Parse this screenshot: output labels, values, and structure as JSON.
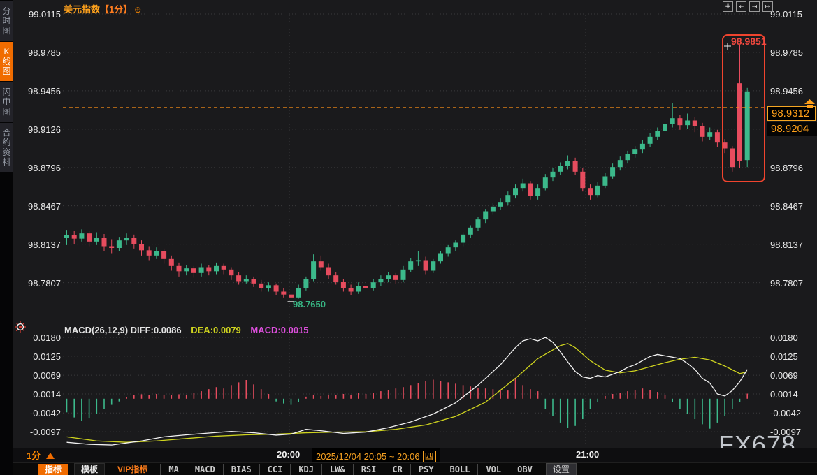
{
  "header": {
    "title": "美元指数",
    "period_tag": "【1分】",
    "expand_icon": "⊕"
  },
  "sidebar": {
    "items": [
      {
        "label": "分时图",
        "active": false
      },
      {
        "label": "K线图",
        "active": true
      },
      {
        "label": "闪电图",
        "active": false
      },
      {
        "label": "合约资料",
        "active": false
      }
    ]
  },
  "top_icons": [
    {
      "name": "pan-icon",
      "glyph": "✚"
    },
    {
      "name": "scale-left-icon",
      "glyph": "⇤"
    },
    {
      "name": "scale-right-icon",
      "glyph": "⇥"
    },
    {
      "name": "shift-right-icon",
      "glyph": "↦"
    }
  ],
  "price_markers": {
    "high": "98.9851",
    "current": "98.9312",
    "secondary": "98.9204",
    "low": "98.7650"
  },
  "macd_header": {
    "name": "MACD(26,12,9) DIFF:0.0086",
    "dea": "DEA:0.0079",
    "macd": "MACD:0.0015"
  },
  "time_axis": {
    "period": "1分",
    "left_time": "20:00",
    "date_range": "2025/12/04 20:05 ~ 20:06",
    "weekday": "四",
    "right_time": "21:00"
  },
  "watermark": "FX678",
  "footer": {
    "buttons": [
      {
        "label": "指标",
        "variant": "active"
      },
      {
        "label": "模板",
        "variant": "tab"
      },
      {
        "label": "VIP指标",
        "variant": "vip"
      },
      {
        "label": "MA",
        "variant": "ind"
      },
      {
        "label": "MACD",
        "variant": "ind"
      },
      {
        "label": "BIAS",
        "variant": "ind"
      },
      {
        "label": "CCI",
        "variant": "ind"
      },
      {
        "label": "KDJ",
        "variant": "ind"
      },
      {
        "label": "LW&",
        "variant": "ind"
      },
      {
        "label": "RSI",
        "variant": "ind"
      },
      {
        "label": "CR",
        "variant": "ind"
      },
      {
        "label": "PSY",
        "variant": "ind"
      },
      {
        "label": "BOLL",
        "variant": "ind"
      },
      {
        "label": "VOL",
        "variant": "ind"
      },
      {
        "label": "OBV",
        "variant": "ind"
      },
      {
        "label": "设置",
        "variant": "settings"
      }
    ]
  },
  "colors": {
    "up": "#3cb98b",
    "down": "#e64c5e",
    "accent_orange": "#ff8a00",
    "label_orange": "#ffa019",
    "dea_yellow": "#cfd41f",
    "diff_white": "#f2f2f2",
    "macd_magenta": "#dd4fdd",
    "highlight_red": "#f0442e",
    "grid": "#3a3a3d",
    "plot_bg": "#1a1a1c"
  },
  "chart_data": {
    "type": "candlestick",
    "symbol": "美元指数",
    "interval": "1分",
    "price_axis_ticks": [
      99.0115,
      98.9785,
      98.9456,
      98.9126,
      98.8796,
      98.8467,
      98.8137,
      98.7807
    ],
    "current_price": 98.9312,
    "secondary_price": 98.9204,
    "session_high": 98.9851,
    "session_low": 98.765,
    "low_marker_index": 30,
    "high_marker_index": 90,
    "time_ticks": [
      "20:00",
      "21:00"
    ],
    "candles": [
      [
        98.819,
        98.826,
        98.813,
        98.8215
      ],
      [
        98.8215,
        98.825,
        98.814,
        98.8185
      ],
      [
        98.8185,
        98.8265,
        98.816,
        98.823
      ],
      [
        98.823,
        98.8255,
        98.812,
        98.816
      ],
      [
        98.816,
        98.824,
        98.813,
        98.8195
      ],
      [
        98.8195,
        98.8225,
        98.808,
        98.812
      ],
      [
        98.812,
        98.818,
        98.806,
        98.8105
      ],
      [
        98.8105,
        98.82,
        98.808,
        98.817
      ],
      [
        98.817,
        98.823,
        98.813,
        98.8195
      ],
      [
        98.8195,
        98.822,
        98.81,
        98.814
      ],
      [
        98.814,
        98.817,
        98.804,
        98.8085
      ],
      [
        98.8085,
        98.812,
        98.8,
        98.804
      ],
      [
        98.804,
        98.811,
        98.801,
        98.8075
      ],
      [
        98.8075,
        98.81,
        98.797,
        98.801
      ],
      [
        98.801,
        98.804,
        98.791,
        98.795
      ],
      [
        98.795,
        98.798,
        98.786,
        98.7905
      ],
      [
        98.7905,
        98.796,
        98.787,
        98.793
      ],
      [
        98.793,
        98.795,
        98.785,
        98.789
      ],
      [
        98.789,
        98.797,
        98.786,
        98.794
      ],
      [
        98.794,
        98.796,
        98.787,
        98.7905
      ],
      [
        98.7905,
        98.798,
        98.788,
        98.795
      ],
      [
        98.795,
        98.797,
        98.788,
        98.792
      ],
      [
        98.792,
        98.794,
        98.783,
        98.787
      ],
      [
        98.787,
        98.79,
        98.779,
        98.782
      ],
      [
        98.782,
        98.787,
        98.78,
        98.784
      ],
      [
        98.784,
        98.786,
        98.777,
        98.78
      ],
      [
        98.78,
        98.783,
        98.773,
        98.776
      ],
      [
        98.776,
        98.781,
        98.773,
        98.7785
      ],
      [
        98.7785,
        98.78,
        98.77,
        98.773
      ],
      [
        98.773,
        98.776,
        98.768,
        98.7705
      ],
      [
        98.7705,
        98.773,
        98.765,
        98.768
      ],
      [
        98.768,
        98.779,
        98.767,
        98.776
      ],
      [
        98.776,
        98.786,
        98.774,
        98.7835
      ],
      [
        98.7835,
        98.805,
        98.782,
        98.799
      ],
      [
        98.799,
        98.804,
        98.791,
        98.794
      ],
      [
        98.794,
        98.797,
        98.784,
        98.787
      ],
      [
        98.787,
        98.79,
        98.779,
        98.7815
      ],
      [
        98.7815,
        98.784,
        98.773,
        98.776
      ],
      [
        98.776,
        98.779,
        98.77,
        98.773
      ],
      [
        98.773,
        98.781,
        98.771,
        98.778
      ],
      [
        98.778,
        98.78,
        98.773,
        98.776
      ],
      [
        98.776,
        98.784,
        98.774,
        98.781
      ],
      [
        98.781,
        98.787,
        98.778,
        98.784
      ],
      [
        98.784,
        98.79,
        98.781,
        98.787
      ],
      [
        98.787,
        98.789,
        98.78,
        98.783
      ],
      [
        98.783,
        98.795,
        98.781,
        98.792
      ],
      [
        98.792,
        98.802,
        98.79,
        98.799
      ],
      [
        98.799,
        98.808,
        98.795,
        98.8
      ],
      [
        98.8,
        98.803,
        98.788,
        98.791
      ],
      [
        98.791,
        98.801,
        98.789,
        98.799
      ],
      [
        98.799,
        98.808,
        98.797,
        98.806
      ],
      [
        98.806,
        98.813,
        98.803,
        98.811
      ],
      [
        98.811,
        98.817,
        98.808,
        98.815
      ],
      [
        98.815,
        98.824,
        98.812,
        98.822
      ],
      [
        98.822,
        98.83,
        98.819,
        98.828
      ],
      [
        98.828,
        98.837,
        98.825,
        98.835
      ],
      [
        98.835,
        98.844,
        98.832,
        98.842
      ],
      [
        98.842,
        98.849,
        98.839,
        98.846
      ],
      [
        98.846,
        98.853,
        98.843,
        98.85
      ],
      [
        98.85,
        98.859,
        98.847,
        98.856
      ],
      [
        98.856,
        98.865,
        98.853,
        98.862
      ],
      [
        98.862,
        98.87,
        98.859,
        98.866
      ],
      [
        98.866,
        98.868,
        98.852,
        98.855
      ],
      [
        98.855,
        98.865,
        98.852,
        98.862
      ],
      [
        98.862,
        98.874,
        98.86,
        98.871
      ],
      [
        98.871,
        98.879,
        98.868,
        98.876
      ],
      [
        98.876,
        98.884,
        98.873,
        98.881
      ],
      [
        98.881,
        98.89,
        98.878,
        98.8855
      ],
      [
        98.8855,
        98.888,
        98.873,
        98.876
      ],
      [
        98.876,
        98.879,
        98.859,
        98.862
      ],
      [
        98.862,
        98.865,
        98.852,
        98.856
      ],
      [
        98.856,
        98.867,
        98.854,
        98.864
      ],
      [
        98.864,
        98.875,
        98.862,
        98.872
      ],
      [
        98.872,
        98.883,
        98.87,
        98.88
      ],
      [
        98.88,
        98.889,
        98.877,
        98.886
      ],
      [
        98.886,
        98.894,
        98.883,
        98.891
      ],
      [
        98.891,
        98.898,
        98.888,
        98.895
      ],
      [
        98.895,
        98.903,
        98.892,
        98.9
      ],
      [
        98.9,
        98.909,
        98.897,
        98.906
      ],
      [
        98.906,
        98.914,
        98.903,
        98.911
      ],
      [
        98.911,
        98.92,
        98.908,
        98.917
      ],
      [
        98.917,
        98.935,
        98.914,
        98.922
      ],
      [
        98.922,
        98.925,
        98.912,
        98.916
      ],
      [
        98.916,
        98.926,
        98.913,
        98.92
      ],
      [
        98.92,
        98.923,
        98.91,
        98.915
      ],
      [
        98.915,
        98.918,
        98.902,
        98.906
      ],
      [
        98.906,
        98.914,
        98.903,
        98.91
      ],
      [
        98.91,
        98.912,
        98.897,
        98.901
      ],
      [
        98.901,
        98.904,
        98.892,
        98.896
      ],
      [
        98.896,
        98.898,
        98.876,
        98.88
      ],
      [
        98.952,
        98.9851,
        98.879,
        98.8855
      ],
      [
        98.886,
        98.948,
        98.88,
        98.945
      ]
    ],
    "macd": {
      "params": "(26,12,9)",
      "diff_current": 0.0086,
      "dea_current": 0.0079,
      "macd_current": 0.0015,
      "axis_ticks": [
        0.018,
        0.0125,
        0.0069,
        0.0014,
        -0.0042,
        -0.0097
      ],
      "histogram": [
        -0.004,
        -0.0055,
        -0.0066,
        -0.0058,
        -0.0045,
        -0.003,
        -0.0018,
        -0.0008,
        0.0005,
        0.001,
        0.0013,
        0.0011,
        0.0014,
        0.0012,
        0.001,
        0.0013,
        0.0011,
        0.0016,
        0.0022,
        0.0028,
        0.0034,
        0.003,
        0.004,
        0.0048,
        0.0055,
        0.0042,
        0.0028,
        0.0014,
        -0.0008,
        -0.0014,
        -0.0018,
        -0.001,
        0.0006,
        0.0012,
        0.0008,
        0.0012,
        0.001,
        0.0014,
        0.0012,
        0.0016,
        0.0014,
        0.0018,
        0.0022,
        0.0026,
        0.003,
        0.0034,
        0.004,
        0.0046,
        0.0052,
        0.0056,
        0.0052,
        0.0048,
        0.0044,
        0.004,
        0.0036,
        0.0032,
        0.003,
        0.0028,
        0.0026,
        0.0024,
        0.0058,
        0.004,
        0.0028,
        0.0022,
        -0.003,
        -0.005,
        -0.007,
        -0.0085,
        -0.008,
        -0.006,
        -0.003,
        -0.001,
        0.0008,
        0.0014,
        0.0018,
        0.0022,
        0.0026,
        0.003,
        0.0026,
        0.002,
        0.0012,
        -0.001,
        -0.003,
        -0.0045,
        -0.006,
        -0.0075,
        -0.0088,
        -0.007,
        -0.005,
        -0.003,
        -0.001,
        0.0015
      ],
      "diff_points": [
        [
          0,
          -0.0128
        ],
        [
          3,
          -0.0134
        ],
        [
          6,
          -0.0136
        ],
        [
          10,
          -0.0124
        ],
        [
          13,
          -0.0112
        ],
        [
          16,
          -0.0106
        ],
        [
          19,
          -0.0101
        ],
        [
          22,
          -0.0096
        ],
        [
          25,
          -0.01
        ],
        [
          28,
          -0.0107
        ],
        [
          30,
          -0.0104
        ],
        [
          32,
          -0.009
        ],
        [
          34,
          -0.0094
        ],
        [
          37,
          -0.0102
        ],
        [
          40,
          -0.0098
        ],
        [
          43,
          -0.0085
        ],
        [
          46,
          -0.0068
        ],
        [
          49,
          -0.0045
        ],
        [
          52,
          -0.0012
        ],
        [
          55,
          0.004
        ],
        [
          58,
          0.01
        ],
        [
          60,
          0.015
        ],
        [
          61,
          0.017
        ],
        [
          62,
          0.0176
        ],
        [
          63,
          0.017
        ],
        [
          64,
          0.018
        ],
        [
          65,
          0.0166
        ],
        [
          66,
          0.0138
        ],
        [
          67,
          0.0108
        ],
        [
          68,
          0.008
        ],
        [
          69,
          0.0064
        ],
        [
          70,
          0.006
        ],
        [
          71,
          0.0068
        ],
        [
          72,
          0.0064
        ],
        [
          73,
          0.0072
        ],
        [
          74,
          0.008
        ],
        [
          75,
          0.0092
        ],
        [
          76,
          0.01
        ],
        [
          77,
          0.0112
        ],
        [
          78,
          0.0124
        ],
        [
          79,
          0.013
        ],
        [
          80,
          0.0126
        ],
        [
          82,
          0.0118
        ],
        [
          83,
          0.0104
        ],
        [
          84,
          0.0086
        ],
        [
          85,
          0.006
        ],
        [
          86,
          0.0046
        ],
        [
          87,
          0.0014
        ],
        [
          88,
          0.0008
        ],
        [
          89,
          0.0024
        ],
        [
          90,
          0.005
        ],
        [
          91,
          0.0086
        ]
      ],
      "dea_points": [
        [
          0,
          -0.0112
        ],
        [
          4,
          -0.0124
        ],
        [
          8,
          -0.0128
        ],
        [
          12,
          -0.0124
        ],
        [
          16,
          -0.0117
        ],
        [
          20,
          -0.011
        ],
        [
          24,
          -0.0106
        ],
        [
          28,
          -0.0104
        ],
        [
          32,
          -0.01
        ],
        [
          36,
          -0.0098
        ],
        [
          40,
          -0.0097
        ],
        [
          44,
          -0.009
        ],
        [
          48,
          -0.0077
        ],
        [
          52,
          -0.0052
        ],
        [
          56,
          -0.001
        ],
        [
          60,
          0.006
        ],
        [
          63,
          0.0118
        ],
        [
          66,
          0.0156
        ],
        [
          67,
          0.0162
        ],
        [
          68,
          0.015
        ],
        [
          70,
          0.0112
        ],
        [
          72,
          0.0084
        ],
        [
          74,
          0.0076
        ],
        [
          76,
          0.0082
        ],
        [
          78,
          0.0094
        ],
        [
          80,
          0.0106
        ],
        [
          82,
          0.0116
        ],
        [
          84,
          0.0122
        ],
        [
          86,
          0.0114
        ],
        [
          88,
          0.0096
        ],
        [
          90,
          0.0074
        ],
        [
          91,
          0.0079
        ]
      ]
    }
  }
}
